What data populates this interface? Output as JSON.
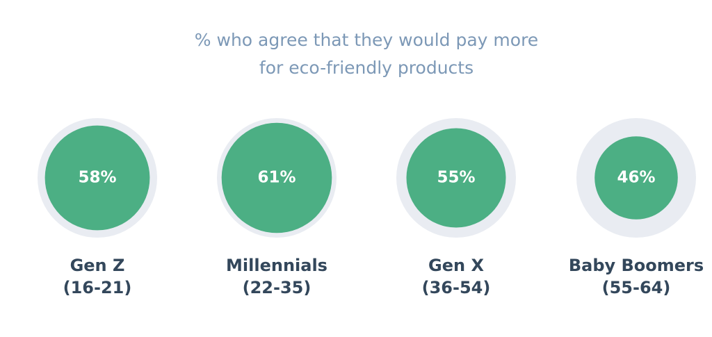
{
  "chart_data": {
    "type": "circle",
    "title": "% who agree that they would pay more for eco-friendly products",
    "categories": [
      "Gen Z",
      "Millennials",
      "Gen X",
      "Baby Boomers"
    ],
    "age_ranges": [
      "(16-21)",
      "(22-35)",
      "(36-54)",
      "(55-64)"
    ],
    "values": [
      58,
      61,
      55,
      46
    ],
    "value_labels": [
      "58%",
      "61%",
      "55%",
      "46%"
    ],
    "color": "#4caf84"
  }
}
